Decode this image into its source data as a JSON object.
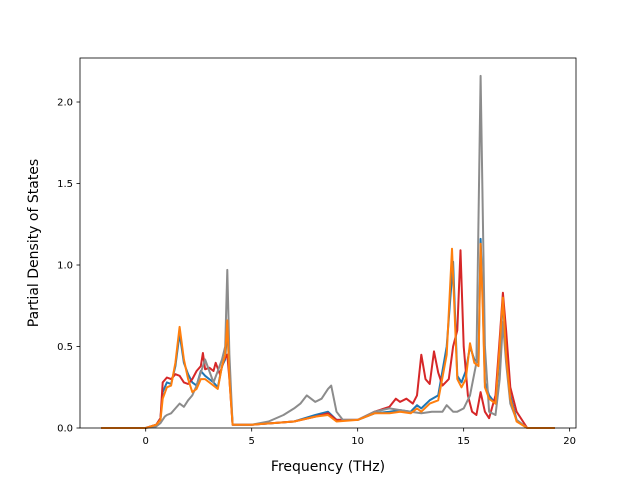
{
  "chart_data": {
    "type": "line",
    "title": "",
    "xlabel": "Frequency (THz)",
    "ylabel": "Partial Density of States",
    "xlim": [
      -3.1,
      20.3
    ],
    "ylim": [
      0.0,
      2.27
    ],
    "xticks": [
      0,
      5,
      10,
      15,
      20
    ],
    "yticks": [
      0.0,
      0.5,
      1.0,
      1.5,
      2.0
    ],
    "xtick_labels": [
      "0",
      "5",
      "10",
      "15",
      "20"
    ],
    "ytick_labels": [
      "0.0",
      "0.5",
      "1.0",
      "1.5",
      "2.0"
    ],
    "grid": false,
    "legend": "none",
    "series": [
      {
        "color": "#1f77b4",
        "x": [
          -2.1,
          0.0,
          0.5,
          0.7,
          0.8,
          1.0,
          1.2,
          1.4,
          1.6,
          1.8,
          2.0,
          2.2,
          2.4,
          2.6,
          2.8,
          3.0,
          3.2,
          3.4,
          3.6,
          3.75,
          3.85,
          3.95,
          4.1,
          5.0,
          6.0,
          7.0,
          8.0,
          8.6,
          9.0,
          10.0,
          10.8,
          11.5,
          12.0,
          12.5,
          12.8,
          13.0,
          13.4,
          13.8,
          14.2,
          14.5,
          14.7,
          14.9,
          15.1,
          15.3,
          15.5,
          15.7,
          15.8,
          15.9,
          16.0,
          16.2,
          16.5,
          16.7,
          16.85,
          17.0,
          17.2,
          17.5,
          18.0,
          19.3
        ],
        "y": [
          0.0,
          0.0,
          0.02,
          0.06,
          0.22,
          0.28,
          0.27,
          0.38,
          0.58,
          0.4,
          0.33,
          0.28,
          0.26,
          0.35,
          0.32,
          0.3,
          0.28,
          0.25,
          0.38,
          0.42,
          0.62,
          0.35,
          0.02,
          0.02,
          0.03,
          0.04,
          0.08,
          0.1,
          0.05,
          0.05,
          0.09,
          0.1,
          0.11,
          0.1,
          0.14,
          0.12,
          0.17,
          0.2,
          0.5,
          1.02,
          0.32,
          0.28,
          0.35,
          0.5,
          0.42,
          0.4,
          1.16,
          0.8,
          0.28,
          0.2,
          0.15,
          0.45,
          0.78,
          0.5,
          0.2,
          0.05,
          0.0,
          0.0
        ]
      },
      {
        "color": "#d62728",
        "x": [
          -2.1,
          0.0,
          0.5,
          0.7,
          0.8,
          1.0,
          1.2,
          1.4,
          1.6,
          1.8,
          2.0,
          2.2,
          2.4,
          2.6,
          2.7,
          2.8,
          3.0,
          3.2,
          3.3,
          3.5,
          3.7,
          3.85,
          3.95,
          4.1,
          5.0,
          6.0,
          7.0,
          8.0,
          8.6,
          9.0,
          10.0,
          10.8,
          11.5,
          11.8,
          12.0,
          12.3,
          12.6,
          12.8,
          13.0,
          13.2,
          13.4,
          13.6,
          13.8,
          14.0,
          14.3,
          14.5,
          14.7,
          14.85,
          15.0,
          15.2,
          15.4,
          15.6,
          15.8,
          16.0,
          16.2,
          16.5,
          16.7,
          16.85,
          17.0,
          17.2,
          17.5,
          18.0,
          19.3
        ],
        "y": [
          0.0,
          0.0,
          0.02,
          0.06,
          0.28,
          0.31,
          0.3,
          0.33,
          0.32,
          0.28,
          0.27,
          0.3,
          0.35,
          0.38,
          0.46,
          0.36,
          0.37,
          0.35,
          0.4,
          0.33,
          0.42,
          0.45,
          0.3,
          0.02,
          0.02,
          0.03,
          0.04,
          0.07,
          0.09,
          0.05,
          0.05,
          0.1,
          0.13,
          0.18,
          0.16,
          0.18,
          0.15,
          0.2,
          0.45,
          0.3,
          0.27,
          0.47,
          0.34,
          0.26,
          0.3,
          0.5,
          0.6,
          1.09,
          0.5,
          0.2,
          0.1,
          0.08,
          0.22,
          0.1,
          0.06,
          0.2,
          0.55,
          0.83,
          0.6,
          0.25,
          0.1,
          0.0,
          0.0
        ]
      },
      {
        "color": "#8c8c8c",
        "x": [
          -2.1,
          0.0,
          0.5,
          0.7,
          0.9,
          1.0,
          1.2,
          1.4,
          1.6,
          1.8,
          2.0,
          2.2,
          2.4,
          2.6,
          2.8,
          3.0,
          3.2,
          3.4,
          3.6,
          3.75,
          3.85,
          3.95,
          4.1,
          5.0,
          5.8,
          6.5,
          7.0,
          7.3,
          7.6,
          8.0,
          8.3,
          8.6,
          8.75,
          9.0,
          9.3,
          10.0,
          10.8,
          11.5,
          12.0,
          12.5,
          13.0,
          13.5,
          14.0,
          14.2,
          14.5,
          14.7,
          15.0,
          15.3,
          15.6,
          15.8,
          16.0,
          16.2,
          16.5,
          16.7,
          16.85,
          17.0,
          17.2,
          17.5,
          18.0,
          19.3
        ],
        "y": [
          0.0,
          0.0,
          0.01,
          0.03,
          0.07,
          0.08,
          0.09,
          0.12,
          0.15,
          0.13,
          0.17,
          0.2,
          0.26,
          0.34,
          0.42,
          0.35,
          0.28,
          0.35,
          0.42,
          0.5,
          0.97,
          0.45,
          0.02,
          0.02,
          0.04,
          0.08,
          0.12,
          0.15,
          0.2,
          0.16,
          0.18,
          0.24,
          0.26,
          0.1,
          0.05,
          0.05,
          0.1,
          0.12,
          0.11,
          0.1,
          0.09,
          0.1,
          0.1,
          0.14,
          0.1,
          0.1,
          0.12,
          0.2,
          0.4,
          2.16,
          0.5,
          0.1,
          0.08,
          0.3,
          0.65,
          0.4,
          0.15,
          0.05,
          0.0,
          0.0
        ]
      },
      {
        "color": "#ff7f0e",
        "x": [
          -2.1,
          0.0,
          0.5,
          0.7,
          0.8,
          1.0,
          1.2,
          1.4,
          1.6,
          1.8,
          2.0,
          2.2,
          2.4,
          2.6,
          2.8,
          3.0,
          3.2,
          3.4,
          3.6,
          3.75,
          3.85,
          3.95,
          4.1,
          5.0,
          6.0,
          7.0,
          8.0,
          8.6,
          9.0,
          10.0,
          10.8,
          11.5,
          12.0,
          12.5,
          12.8,
          13.0,
          13.4,
          13.8,
          14.2,
          14.45,
          14.7,
          14.9,
          15.1,
          15.3,
          15.5,
          15.7,
          15.8,
          15.9,
          16.0,
          16.2,
          16.5,
          16.7,
          16.85,
          17.0,
          17.2,
          17.5,
          18.0,
          19.3
        ],
        "y": [
          0.0,
          0.0,
          0.02,
          0.05,
          0.18,
          0.25,
          0.26,
          0.4,
          0.62,
          0.42,
          0.3,
          0.22,
          0.24,
          0.3,
          0.3,
          0.28,
          0.26,
          0.24,
          0.38,
          0.45,
          0.66,
          0.3,
          0.02,
          0.02,
          0.03,
          0.04,
          0.07,
          0.08,
          0.04,
          0.05,
          0.09,
          0.09,
          0.1,
          0.09,
          0.12,
          0.1,
          0.15,
          0.17,
          0.45,
          1.1,
          0.3,
          0.25,
          0.3,
          0.52,
          0.4,
          0.38,
          1.13,
          0.75,
          0.25,
          0.18,
          0.15,
          0.5,
          0.8,
          0.45,
          0.18,
          0.04,
          0.0,
          0.0
        ]
      }
    ]
  }
}
